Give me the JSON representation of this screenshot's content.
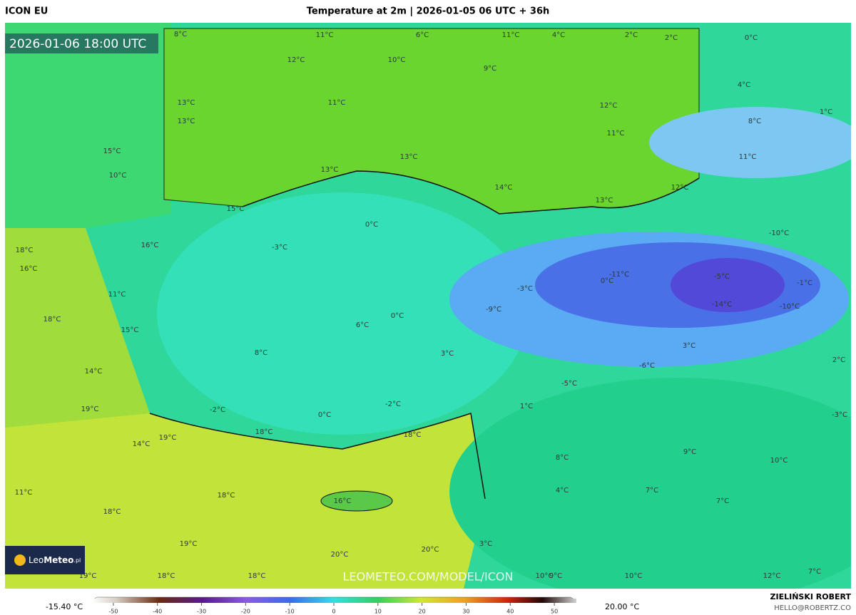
{
  "header": {
    "model": "ICON EU",
    "title": "Temperature at 2m | 2026-01-05 06 UTC + 36h"
  },
  "map": {
    "valid_time": "2026-01-06 18:00 UTC",
    "watermark": "LEOMETEO.COM/MODEL/ICON",
    "logo": {
      "name_light": "Leo",
      "name_bold": "Meteo",
      "suffix": ".pl"
    },
    "labels": [
      "8°C",
      "11°C",
      "6°C",
      "11°C",
      "4°C",
      "2°C",
      "2°C",
      "0°C",
      "12°C",
      "10°C",
      "9°C",
      "4°C",
      "13°C",
      "11°C",
      "12°C",
      "1°C",
      "13°C",
      "8°C",
      "11°C",
      "15°C",
      "13°C",
      "11°C",
      "10°C",
      "13°C",
      "14°C",
      "12°C",
      "13°C",
      "15°C",
      "0°C",
      "-10°C",
      "18°C",
      "-3°C",
      "16°C",
      "16°C",
      "-11°C",
      "-5°C",
      "0°C",
      "-3°C",
      "-1°C",
      "11°C",
      "-9°C",
      "-14°C",
      "-10°C",
      "0°C",
      "18°C",
      "6°C",
      "15°C",
      "3°C",
      "8°C",
      "3°C",
      "2°C",
      "-6°C",
      "14°C",
      "-5°C",
      "1°C",
      "19°C",
      "-2°C",
      "0°C",
      "-2°C",
      "-3°C",
      "18°C",
      "18°C",
      "19°C",
      "14°C",
      "9°C",
      "8°C",
      "10°C",
      "11°C",
      "18°C",
      "4°C",
      "7°C",
      "7°C",
      "16°C",
      "18°C",
      "3°C",
      "19°C",
      "20°C",
      "20°C",
      "19°C",
      "18°C",
      "18°C",
      "10°C",
      "9°C",
      "10°C",
      "12°C",
      "7°C"
    ]
  },
  "colorbar": {
    "min_label": "-15.40 °C",
    "max_label": "20.00 °C",
    "range": [
      -55,
      55
    ],
    "ticks": [
      -50,
      -40,
      -30,
      -20,
      -10,
      0,
      10,
      20,
      30,
      40,
      50
    ]
  },
  "footer": {
    "author": "ZIELIŃSKI ROBERT",
    "contact": "HELLO@ROBERTZ.CO"
  }
}
